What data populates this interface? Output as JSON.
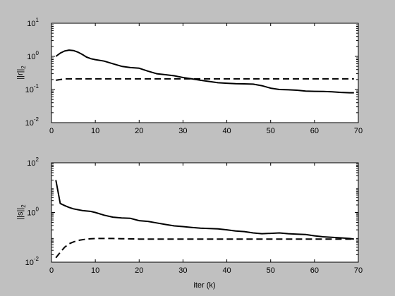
{
  "chart_data": [
    {
      "type": "line",
      "xlabel": "",
      "ylabel_main": "||r||",
      "ylabel_sub": "2",
      "xlim": [
        0,
        70
      ],
      "ylim": [
        0.01,
        10
      ],
      "yscale": "log",
      "grid": false,
      "xticks": [
        0,
        10,
        20,
        30,
        40,
        50,
        60,
        70
      ],
      "yticks": [
        {
          "value": 0.01,
          "base": "10",
          "exp": "-2"
        },
        {
          "value": 0.1,
          "base": "10",
          "exp": "-1"
        },
        {
          "value": 1,
          "base": "10",
          "exp": "0"
        },
        {
          "value": 10,
          "base": "10",
          "exp": "1"
        }
      ],
      "series": [
        {
          "style": "solid",
          "color": "#000000",
          "x": [
            1,
            2,
            3,
            4,
            5,
            6,
            7,
            8,
            9,
            10,
            12,
            14,
            16,
            18,
            20,
            22,
            24,
            26,
            28,
            30,
            32,
            34,
            36,
            38,
            40,
            42,
            44,
            46,
            48,
            50,
            52,
            54,
            56,
            58,
            60,
            62,
            64,
            66,
            68,
            69
          ],
          "y": [
            1.0,
            1.25,
            1.45,
            1.55,
            1.5,
            1.35,
            1.15,
            0.95,
            0.85,
            0.8,
            0.72,
            0.6,
            0.5,
            0.46,
            0.44,
            0.36,
            0.3,
            0.28,
            0.26,
            0.23,
            0.21,
            0.19,
            0.175,
            0.16,
            0.155,
            0.15,
            0.148,
            0.145,
            0.13,
            0.11,
            0.1,
            0.098,
            0.095,
            0.09,
            0.088,
            0.087,
            0.085,
            0.082,
            0.08,
            0.08
          ]
        },
        {
          "style": "dashed",
          "color": "#000000",
          "x": [
            1,
            2,
            3,
            4,
            6,
            10,
            20,
            30,
            40,
            50,
            60,
            69
          ],
          "y": [
            0.19,
            0.2,
            0.21,
            0.21,
            0.21,
            0.21,
            0.21,
            0.21,
            0.21,
            0.21,
            0.21,
            0.21
          ]
        }
      ]
    },
    {
      "type": "line",
      "xlabel": "iter (k)",
      "ylabel_main": "||s||",
      "ylabel_sub": "2",
      "xlim": [
        0,
        70
      ],
      "ylim": [
        0.01,
        100
      ],
      "yscale": "log",
      "grid": false,
      "xticks": [
        0,
        10,
        20,
        30,
        40,
        50,
        60,
        70
      ],
      "yticks": [
        {
          "value": 0.01,
          "base": "10",
          "exp": "-2"
        },
        {
          "value": 1,
          "base": "10",
          "exp": "0"
        },
        {
          "value": 100,
          "base": "10",
          "exp": "2"
        }
      ],
      "series": [
        {
          "style": "solid",
          "color": "#000000",
          "x": [
            1,
            2,
            3,
            4,
            5,
            6,
            7,
            8,
            9,
            10,
            12,
            14,
            16,
            18,
            20,
            22,
            24,
            26,
            28,
            30,
            32,
            34,
            36,
            38,
            40,
            42,
            44,
            46,
            48,
            50,
            52,
            54,
            56,
            58,
            60,
            62,
            64,
            66,
            68,
            69
          ],
          "y": [
            20,
            2.3,
            1.9,
            1.6,
            1.4,
            1.3,
            1.2,
            1.15,
            1.1,
            1.0,
            0.78,
            0.65,
            0.6,
            0.58,
            0.47,
            0.44,
            0.38,
            0.33,
            0.29,
            0.27,
            0.25,
            0.235,
            0.225,
            0.22,
            0.2,
            0.18,
            0.17,
            0.15,
            0.14,
            0.145,
            0.15,
            0.14,
            0.135,
            0.13,
            0.115,
            0.105,
            0.1,
            0.095,
            0.09,
            0.085
          ]
        },
        {
          "style": "dashed",
          "color": "#000000",
          "x": [
            1,
            2,
            3,
            4,
            5,
            6,
            8,
            10,
            12,
            14,
            16,
            20,
            30,
            40,
            50,
            60,
            69
          ],
          "y": [
            0.015,
            0.025,
            0.04,
            0.055,
            0.065,
            0.075,
            0.085,
            0.09,
            0.09,
            0.09,
            0.088,
            0.085,
            0.085,
            0.085,
            0.085,
            0.085,
            0.085
          ]
        }
      ]
    }
  ]
}
